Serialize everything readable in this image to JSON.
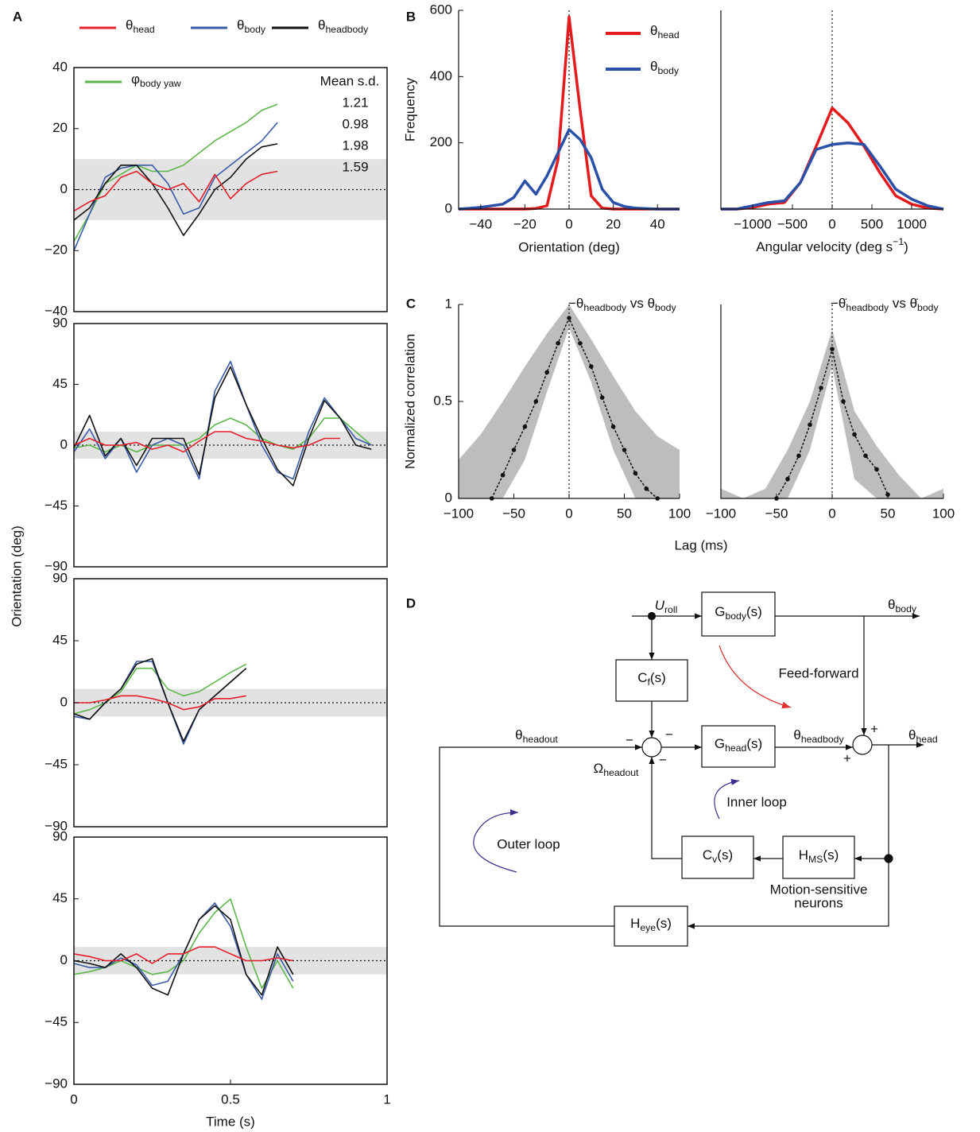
{
  "panel_labels": [
    "A",
    "B",
    "C",
    "D"
  ],
  "chart_data": [
    {
      "type": "line",
      "ylabel": "Orientation (deg)",
      "x": [
        0,
        0.05,
        0.1,
        0.15,
        0.2,
        0.25,
        0.3,
        0.35,
        0.4,
        0.45,
        0.5,
        0.55,
        0.6,
        0.65
      ],
      "xlim": [
        0,
        1
      ],
      "ylim": [
        -40,
        40
      ],
      "yticks": [
        40,
        20,
        0,
        {
          "value": -20,
          "label": "−20"
        },
        {
          "value": -40,
          "label": "−40"
        }
      ],
      "band": [
        -10,
        10
      ],
      "hline": 0,
      "series": [
        {
          "name": "φbody yaw",
          "color": "#5cb648",
          "values": [
            -17,
            -8,
            2,
            5,
            8,
            6,
            6,
            8,
            12,
            16,
            19,
            22,
            26,
            28
          ]
        },
        {
          "name": "θbody",
          "color": "#3a5ba9",
          "values": [
            -20,
            -8,
            4,
            7,
            8,
            8,
            2,
            -8,
            -6,
            4,
            8,
            12,
            16,
            22
          ]
        },
        {
          "name": "θheadbody",
          "color": "#111111",
          "values": [
            -10,
            -6,
            2,
            8,
            8,
            2,
            -6,
            -15,
            -8,
            0,
            4,
            10,
            14,
            15
          ]
        },
        {
          "name": "θhead",
          "color": "#e5202a",
          "values": [
            -7,
            -4,
            -2,
            4,
            6,
            2,
            0,
            2,
            -4,
            5,
            -3,
            2,
            5,
            6
          ]
        }
      ],
      "stats_title": "Mean s.d.",
      "stats": [
        1.21,
        0.98,
        1.98,
        1.59
      ]
    },
    {
      "type": "line",
      "x": [
        0,
        0.05,
        0.1,
        0.15,
        0.2,
        0.25,
        0.3,
        0.35,
        0.4,
        0.45,
        0.5,
        0.55,
        0.6,
        0.65,
        0.7,
        0.75,
        0.8,
        0.85,
        0.9,
        0.95
      ],
      "xlim": [
        0,
        1
      ],
      "ylim": [
        -90,
        90
      ],
      "yticks": [
        {
          "value": -90,
          "label": "−90"
        },
        {
          "value": -45,
          "label": "−45"
        },
        0,
        45,
        90
      ],
      "band": [
        -10,
        10
      ],
      "hline": 0,
      "series": [
        {
          "color": "#5cb648",
          "values": [
            -2,
            0,
            -5,
            0,
            -5,
            0,
            0,
            0,
            5,
            15,
            20,
            15,
            5,
            0,
            -3,
            5,
            20,
            20,
            10,
            0
          ]
        },
        {
          "color": "#3a5ba9",
          "values": [
            -5,
            12,
            -10,
            5,
            -20,
            0,
            5,
            0,
            -25,
            40,
            62,
            30,
            0,
            -20,
            -25,
            10,
            35,
            20,
            5,
            0
          ]
        },
        {
          "color": "#111111",
          "values": [
            -2,
            22,
            -8,
            5,
            -15,
            5,
            5,
            5,
            -22,
            35,
            58,
            30,
            5,
            -18,
            -30,
            5,
            33,
            20,
            0,
            -3
          ]
        },
        {
          "color": "#e5202a",
          "values": [
            0,
            5,
            0,
            0,
            2,
            -3,
            0,
            -5,
            3,
            10,
            10,
            5,
            3,
            0,
            -2,
            0,
            5,
            5,
            null,
            null
          ]
        }
      ]
    },
    {
      "type": "line",
      "x": [
        0,
        0.05,
        0.1,
        0.15,
        0.2,
        0.25,
        0.3,
        0.35,
        0.4,
        0.45,
        0.5,
        0.55
      ],
      "xlim": [
        0,
        1
      ],
      "ylim": [
        -90,
        90
      ],
      "yticks": [
        {
          "value": -90,
          "label": "−90"
        },
        {
          "value": -45,
          "label": "−45"
        },
        0,
        45,
        90
      ],
      "band": [
        -10,
        10
      ],
      "hline": 0,
      "series": [
        {
          "color": "#5cb648",
          "values": [
            -8,
            -5,
            0,
            8,
            25,
            25,
            10,
            5,
            8,
            15,
            22,
            28
          ]
        },
        {
          "color": "#3a5ba9",
          "values": [
            -10,
            -12,
            0,
            10,
            30,
            30,
            0,
            -30,
            -5,
            5,
            15,
            25
          ]
        },
        {
          "color": "#111111",
          "values": [
            -8,
            -12,
            0,
            10,
            28,
            32,
            0,
            -28,
            -5,
            5,
            15,
            25
          ]
        },
        {
          "color": "#e5202a",
          "values": [
            0,
            0,
            2,
            5,
            5,
            3,
            0,
            -5,
            -3,
            3,
            3,
            5
          ]
        }
      ]
    },
    {
      "type": "line",
      "xlabel": "Time (s)",
      "x": [
        0,
        0.05,
        0.1,
        0.15,
        0.2,
        0.25,
        0.3,
        0.35,
        0.4,
        0.45,
        0.5,
        0.55,
        0.6,
        0.65,
        0.7
      ],
      "xlim": [
        0,
        1
      ],
      "xticks": [
        0,
        0.5,
        1
      ],
      "ylim": [
        -90,
        90
      ],
      "yticks": [
        {
          "value": -90,
          "label": "−90"
        },
        {
          "value": -45,
          "label": "−45"
        },
        0,
        45,
        90
      ],
      "band": [
        -10,
        10
      ],
      "hline": 0,
      "series": [
        {
          "color": "#5cb648",
          "values": [
            -10,
            -8,
            -5,
            0,
            -5,
            -10,
            -8,
            0,
            20,
            35,
            45,
            10,
            -20,
            0,
            -20
          ]
        },
        {
          "color": "#3a5ba9",
          "values": [
            -2,
            -5,
            -5,
            2,
            -3,
            -18,
            -15,
            5,
            30,
            42,
            25,
            -10,
            -28,
            5,
            -15
          ]
        },
        {
          "color": "#111111",
          "values": [
            0,
            -2,
            -5,
            5,
            -5,
            -20,
            -25,
            5,
            30,
            40,
            30,
            -10,
            -25,
            10,
            -10
          ]
        },
        {
          "color": "#e5202a",
          "values": [
            5,
            3,
            0,
            0,
            5,
            -2,
            5,
            5,
            10,
            10,
            5,
            0,
            0,
            2,
            0
          ]
        }
      ]
    },
    {
      "type": "line",
      "ylabel": "Frequency",
      "xlabel": "Orientation (deg)",
      "x": [
        -50,
        -40,
        -30,
        -25,
        -20,
        -15,
        -10,
        -5,
        0,
        5,
        10,
        15,
        20,
        25,
        30,
        40,
        50
      ],
      "xlim": [
        -50,
        50
      ],
      "xticks": [
        {
          "value": -40,
          "label": "−40"
        },
        {
          "value": -20,
          "label": "−20"
        },
        0,
        20,
        40
      ],
      "ylim": [
        0,
        600
      ],
      "yticks": [
        0,
        200,
        400,
        600
      ],
      "vline": 0,
      "series": [
        {
          "name": "θhead",
          "color": "#e41a1c",
          "values": [
            0,
            0,
            0,
            0,
            0,
            2,
            10,
            150,
            580,
            300,
            40,
            3,
            0,
            0,
            0,
            0,
            0
          ]
        },
        {
          "name": "θbody",
          "color": "#2b50a8",
          "values": [
            0,
            5,
            15,
            35,
            85,
            45,
            100,
            170,
            240,
            210,
            155,
            60,
            20,
            8,
            3,
            0,
            0
          ]
        }
      ]
    },
    {
      "type": "line",
      "xlabel": [
        "Angular velocity (deg s",
        "−1",
        ")"
      ],
      "x": [
        -1400,
        -1200,
        -1000,
        -800,
        -600,
        -400,
        -200,
        0,
        200,
        400,
        600,
        800,
        1000,
        1200,
        1400
      ],
      "xlim": [
        -1400,
        1400
      ],
      "xticks": [
        {
          "value": -1000,
          "label": "−1000"
        },
        {
          "value": -500,
          "label": "−500"
        },
        0,
        500,
        1000
      ],
      "ylim": [
        0,
        600
      ],
      "vline": 0,
      "series": [
        {
          "color": "#e41a1c",
          "values": [
            0,
            0,
            5,
            15,
            20,
            80,
            190,
            305,
            260,
            190,
            110,
            40,
            15,
            3,
            0
          ]
        },
        {
          "color": "#2b50a8",
          "values": [
            0,
            0,
            10,
            20,
            25,
            80,
            180,
            195,
            200,
            195,
            130,
            60,
            30,
            10,
            0
          ]
        }
      ]
    },
    {
      "type": "line",
      "ylabel": "Normalized correlation",
      "xlabel": "Lag (ms)",
      "annotation": [
        "−θ",
        "headbody",
        " vs θ",
        "body"
      ],
      "x": [
        -70,
        -60,
        -50,
        -40,
        -30,
        -20,
        -10,
        0,
        10,
        20,
        30,
        40,
        50,
        60,
        70,
        80
      ],
      "values": [
        0,
        0.12,
        0.25,
        0.37,
        0.5,
        0.65,
        0.8,
        0.93,
        0.8,
        0.68,
        0.52,
        0.37,
        0.25,
        0.13,
        0.05,
        0
      ],
      "band_x": [
        -100,
        -80,
        -60,
        -40,
        -20,
        0,
        20,
        40,
        60,
        80,
        100
      ],
      "band_lower": [
        0,
        0,
        0,
        0.2,
        0.55,
        0.88,
        0.6,
        0.25,
        0,
        0,
        0
      ],
      "band_upper": [
        0.2,
        0.33,
        0.5,
        0.68,
        0.85,
        1,
        0.82,
        0.63,
        0.45,
        0.32,
        0.25
      ],
      "xlim": [
        -100,
        100
      ],
      "xticks": [
        {
          "value": -100,
          "label": "−100"
        },
        {
          "value": -50,
          "label": "−50"
        },
        0,
        50,
        100
      ],
      "ylim": [
        0,
        1
      ],
      "yticks": [
        0,
        0.5,
        1
      ],
      "vline": 0
    },
    {
      "type": "line",
      "annotation": [
        "−θ̇",
        "headbody",
        " vs θ̇",
        "body"
      ],
      "x": [
        -50,
        -40,
        -30,
        -20,
        -10,
        0,
        10,
        20,
        30,
        40,
        50
      ],
      "values": [
        0,
        0.1,
        0.22,
        0.38,
        0.57,
        0.77,
        0.5,
        0.33,
        0.22,
        0.15,
        0.02
      ],
      "band_x": [
        -100,
        -80,
        -60,
        -40,
        -20,
        0,
        20,
        40,
        60,
        80,
        100
      ],
      "band_lower": [
        0,
        0,
        0,
        0,
        0.25,
        0.68,
        0.1,
        0,
        0,
        0,
        0
      ],
      "band_upper": [
        0.05,
        0,
        0.05,
        0.25,
        0.5,
        0.87,
        0.45,
        0.27,
        0.12,
        0,
        0.05
      ],
      "xlim": [
        -100,
        100
      ],
      "xticks": [
        {
          "value": -100,
          "label": "−100"
        },
        {
          "value": -50,
          "label": "−50"
        },
        0,
        50,
        100
      ],
      "ylim": [
        0,
        1
      ],
      "vline": 0
    }
  ],
  "diagram": {
    "nodes": [
      {
        "base": "G",
        "sub": "body",
        "tail": "(s)"
      },
      {
        "base": "C",
        "sub": "f",
        "tail": "(s)"
      },
      {
        "base": "G",
        "sub": "head",
        "tail": "(s)"
      },
      {
        "base": "C",
        "sub": "v",
        "tail": "(s)"
      },
      {
        "base": "H",
        "sub": "MS",
        "tail": "(s)"
      },
      {
        "base": "H",
        "sub": "eye",
        "tail": "(s)"
      }
    ],
    "signals": [
      {
        "base": "U",
        "sub": "roll"
      },
      {
        "base": "θ",
        "sub": "body"
      },
      {
        "base": "θ",
        "sub": "headout"
      },
      {
        "base": "θ",
        "sub": "headbody"
      },
      {
        "base": "θ",
        "sub": "head"
      },
      {
        "base": "Ω",
        "sub": "headout"
      }
    ],
    "signs": [
      "−",
      "−",
      "−",
      "+",
      "+"
    ],
    "feed_forward": "Feed-forward",
    "inner_loop": "Inner loop",
    "outer_loop": "Outer loop",
    "neurons": [
      "Motion-sensitive",
      "neurons"
    ]
  }
}
